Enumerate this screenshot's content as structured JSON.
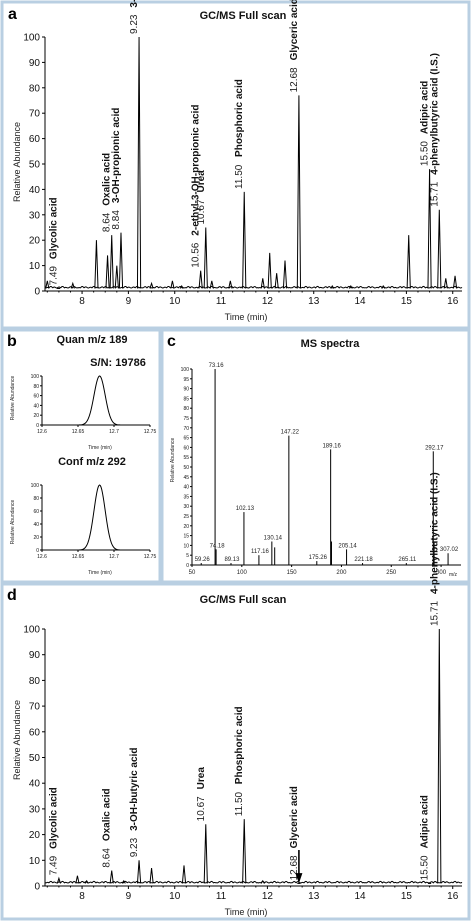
{
  "panels": {
    "a": {
      "letter": "a",
      "title": "GC/MS Full scan",
      "xlabel": "Time (min)",
      "ylabel": "Relative Abundance"
    },
    "b": {
      "letter": "b",
      "quan_title": "Quan m/z 189",
      "sn": "S/N: 19786",
      "conf_title": "Conf m/z 292",
      "xlabel": "Time (min)",
      "ylabel": "Relative Abundance"
    },
    "c": {
      "letter": "c",
      "title": "MS spectra",
      "ylabel": "Relative Abundance",
      "xunit": "m/z"
    },
    "d": {
      "letter": "d",
      "title": "GC/MS Full scan",
      "xlabel": "Time (min)",
      "ylabel": "Relative Abundance"
    }
  },
  "chart_data": [
    {
      "id": "a",
      "type": "line",
      "title": "GC/MS Full scan",
      "xlabel": "Time (min)",
      "ylabel": "Relative Abundance",
      "xlim": [
        7.2,
        16.2
      ],
      "ylim": [
        0,
        100
      ],
      "xticks": [
        8,
        9,
        10,
        11,
        12,
        13,
        14,
        15,
        16
      ],
      "yticks": [
        0,
        10,
        20,
        30,
        40,
        50,
        60,
        70,
        80,
        90,
        100
      ],
      "peaks": [
        {
          "x": 7.25,
          "y": 4
        },
        {
          "x": 7.49,
          "y": 1
        },
        {
          "x": 7.8,
          "y": 3
        },
        {
          "x": 8.31,
          "y": 20
        },
        {
          "x": 8.55,
          "y": 14
        },
        {
          "x": 8.64,
          "y": 22
        },
        {
          "x": 8.75,
          "y": 10
        },
        {
          "x": 8.84,
          "y": 23
        },
        {
          "x": 9.23,
          "y": 100
        },
        {
          "x": 9.5,
          "y": 3
        },
        {
          "x": 9.95,
          "y": 4
        },
        {
          "x": 10.15,
          "y": 2
        },
        {
          "x": 10.56,
          "y": 8
        },
        {
          "x": 10.67,
          "y": 25
        },
        {
          "x": 10.8,
          "y": 4
        },
        {
          "x": 11.2,
          "y": 4
        },
        {
          "x": 11.5,
          "y": 39
        },
        {
          "x": 11.9,
          "y": 5
        },
        {
          "x": 12.05,
          "y": 15
        },
        {
          "x": 12.2,
          "y": 7
        },
        {
          "x": 12.38,
          "y": 12
        },
        {
          "x": 12.68,
          "y": 77
        },
        {
          "x": 13.4,
          "y": 2
        },
        {
          "x": 13.8,
          "y": 2
        },
        {
          "x": 14.5,
          "y": 2
        },
        {
          "x": 15.05,
          "y": 22
        },
        {
          "x": 15.5,
          "y": 48
        },
        {
          "x": 15.71,
          "y": 32
        },
        {
          "x": 15.85,
          "y": 5
        },
        {
          "x": 16.05,
          "y": 6
        }
      ],
      "annotations": [
        {
          "rt": "7.49",
          "name": "Glycolic acid",
          "x": 7.49
        },
        {
          "rt": "8.64",
          "name": "Oxalic acid",
          "x": 8.64
        },
        {
          "rt": "8.84",
          "name": "3-OH-propionic acid",
          "x": 8.84
        },
        {
          "rt": "9.23",
          "name": "3-OH-butyric acid",
          "x": 9.23
        },
        {
          "rt": "10.56",
          "name": "2-ethyl-3-OH-propionic acid",
          "x": 10.56
        },
        {
          "rt": "10.67",
          "name": "Urea",
          "x": 10.67
        },
        {
          "rt": "11.50",
          "name": "Phosphoric acid",
          "x": 11.5
        },
        {
          "rt": "12.68",
          "name": "Glyceric acid",
          "x": 12.68
        },
        {
          "rt": "15.50",
          "name": "Adipic acid",
          "x": 15.5
        },
        {
          "rt": "15.71",
          "name": "4-phenylbutyric acid (I.S.)",
          "x": 15.71
        }
      ]
    },
    {
      "id": "b-quan",
      "type": "line",
      "title": "Quan m/z 189",
      "annotation": "S/N: 19786",
      "xlabel": "Time (min)",
      "ylabel": "Relative Abundance",
      "xlim": [
        12.6,
        12.75
      ],
      "ylim": [
        0,
        100
      ],
      "xticks": [
        12.6,
        12.65,
        12.7,
        12.75
      ],
      "yticks": [
        0,
        20,
        40,
        60,
        80,
        100
      ],
      "peak_center": 12.68,
      "peak_height": 100
    },
    {
      "id": "b-conf",
      "type": "line",
      "title": "Conf m/z 292",
      "xlabel": "Time (min)",
      "ylabel": "Relative Abundance",
      "xlim": [
        12.6,
        12.75
      ],
      "ylim": [
        0,
        100
      ],
      "xticks": [
        12.6,
        12.65,
        12.7,
        12.75
      ],
      "yticks": [
        0,
        20,
        40,
        60,
        80,
        100
      ],
      "peak_center": 12.68,
      "peak_height": 100
    },
    {
      "id": "c",
      "type": "bar",
      "title": "MS spectra",
      "ylabel": "Relative Abundance",
      "xlabel": "m/z",
      "xlim": [
        50,
        320
      ],
      "ylim": [
        0,
        100
      ],
      "xticks": [
        50,
        100,
        150,
        200,
        250,
        300
      ],
      "yticks": [
        0,
        5,
        10,
        15,
        20,
        25,
        30,
        35,
        40,
        45,
        50,
        55,
        60,
        65,
        70,
        75,
        80,
        85,
        90,
        95,
        100
      ],
      "ions": [
        {
          "mz": 59.26,
          "y": 1,
          "label": "59.26"
        },
        {
          "mz": 73.16,
          "y": 100,
          "label": "73.16"
        },
        {
          "mz": 74.18,
          "y": 8,
          "label": "74.18"
        },
        {
          "mz": 89.13,
          "y": 1,
          "label": "89.13"
        },
        {
          "mz": 102.13,
          "y": 27,
          "label": "102.13"
        },
        {
          "mz": 117.16,
          "y": 5,
          "label": "117.16"
        },
        {
          "mz": 130.14,
          "y": 12,
          "label": "130.14"
        },
        {
          "mz": 133,
          "y": 9,
          "label": ""
        },
        {
          "mz": 147.22,
          "y": 66,
          "label": "147.22"
        },
        {
          "mz": 175.26,
          "y": 2,
          "label": "175.26"
        },
        {
          "mz": 189.16,
          "y": 59,
          "label": "189.16"
        },
        {
          "mz": 190,
          "y": 12,
          "label": ""
        },
        {
          "mz": 205.14,
          "y": 8,
          "label": "205.14"
        },
        {
          "mz": 221.18,
          "y": 1,
          "label": "221.18"
        },
        {
          "mz": 265.11,
          "y": 1,
          "label": "265.11"
        },
        {
          "mz": 292.17,
          "y": 58,
          "label": "292.17"
        },
        {
          "mz": 293,
          "y": 12,
          "label": ""
        },
        {
          "mz": 307.02,
          "y": 6,
          "label": "307.02"
        }
      ]
    },
    {
      "id": "d",
      "type": "line",
      "title": "GC/MS Full scan",
      "xlabel": "Time (min)",
      "ylabel": "Relative Abundance",
      "xlim": [
        7.2,
        16.2
      ],
      "ylim": [
        0,
        100
      ],
      "xticks": [
        8,
        9,
        10,
        11,
        12,
        13,
        14,
        15,
        16
      ],
      "yticks": [
        0,
        10,
        20,
        30,
        40,
        50,
        60,
        70,
        80,
        90,
        100
      ],
      "peaks": [
        {
          "x": 7.5,
          "y": 3
        },
        {
          "x": 7.9,
          "y": 4
        },
        {
          "x": 8.1,
          "y": 2
        },
        {
          "x": 8.64,
          "y": 6
        },
        {
          "x": 8.9,
          "y": 2
        },
        {
          "x": 9.23,
          "y": 10
        },
        {
          "x": 9.5,
          "y": 7
        },
        {
          "x": 10.2,
          "y": 8
        },
        {
          "x": 10.67,
          "y": 24
        },
        {
          "x": 11.5,
          "y": 26
        },
        {
          "x": 11.9,
          "y": 2
        },
        {
          "x": 12.68,
          "y": 1
        },
        {
          "x": 15.5,
          "y": 1
        },
        {
          "x": 15.71,
          "y": 100
        }
      ],
      "annotations": [
        {
          "rt": "7.49",
          "name": "Glycolic acid",
          "x": 7.49
        },
        {
          "rt": "8.64",
          "name": "Oxalic acid",
          "x": 8.64
        },
        {
          "rt": "9.23",
          "name": "3-OH-butyric acid",
          "x": 9.23
        },
        {
          "rt": "10.67",
          "name": "Urea",
          "x": 10.67
        },
        {
          "rt": "11.50",
          "name": "Phosphoric acid",
          "x": 11.5
        },
        {
          "rt": "12.68",
          "name": "Glyceric acid",
          "x": 12.68
        },
        {
          "rt": "15.50",
          "name": "Adipic acid",
          "x": 15.5
        },
        {
          "rt": "15.71",
          "name": "4-phenylbutyric acid (I.S.)",
          "x": 15.71
        }
      ],
      "arrow_at": 12.68
    }
  ]
}
